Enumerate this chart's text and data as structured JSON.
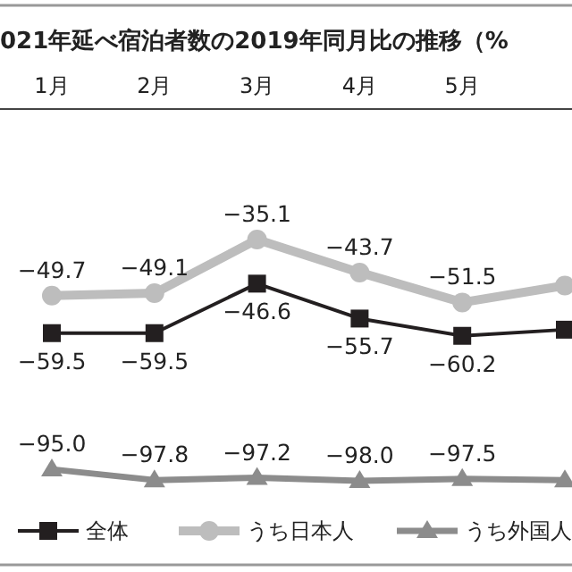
{
  "chart_data": {
    "type": "line",
    "title": "021年延べ宿泊者数の2019年同月比の推移（%",
    "categories": [
      "1月",
      "2月",
      "3月",
      "4月",
      "5月",
      null
    ],
    "legend": "bottom",
    "series": [
      {
        "name": "全体",
        "color": "#231f20",
        "marker": "square",
        "values": [
          -59.5,
          -59.5,
          -46.6,
          -55.7,
          -60.2,
          -58.6
        ],
        "value_labels": [
          "−59.5",
          "−59.5",
          "−46.6",
          "−55.7",
          "−60.2",
          null
        ]
      },
      {
        "name": "うち日本人",
        "color": "#bdbdbd",
        "marker": "circle",
        "values": [
          -49.7,
          -49.1,
          -35.1,
          -43.7,
          -51.5,
          -47.1
        ],
        "value_labels": [
          "−49.7",
          "−49.1",
          "−35.1",
          "−43.7",
          "−51.5",
          null
        ]
      },
      {
        "name": "うち外国人",
        "color": "#8c8c8c",
        "marker": "triangle",
        "values": [
          -95.0,
          -97.8,
          -97.2,
          -98.0,
          -97.5,
          -97.8
        ],
        "value_labels": [
          "−95.0",
          "−97.8",
          "−97.2",
          "−98.0",
          "−97.5",
          null
        ]
      }
    ]
  }
}
